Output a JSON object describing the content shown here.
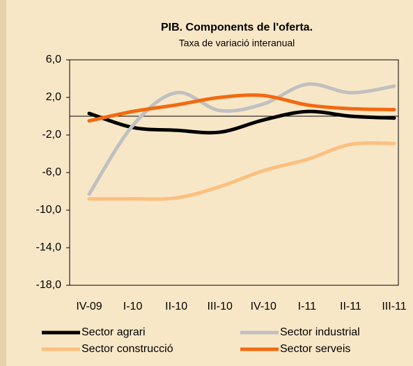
{
  "chart_data": {
    "type": "line",
    "title": "PIB. Components de l'oferta.",
    "subtitle": "Taxa de variació interanual",
    "categories": [
      "IV-09",
      "I-10",
      "II-10",
      "III-10",
      "IV-10",
      "I-11",
      "II-11",
      "III-11"
    ],
    "series": [
      {
        "name": "Sector agrari",
        "color": "#000000",
        "values": [
          0.3,
          -1.2,
          -1.5,
          -1.7,
          -0.4,
          0.5,
          0.0,
          -0.2
        ]
      },
      {
        "name": "Sector industrial",
        "color": "#c0c0c0",
        "values": [
          -8.3,
          -1.0,
          2.5,
          0.6,
          1.3,
          3.4,
          2.5,
          3.2
        ]
      },
      {
        "name": "Sector construcció",
        "color": "#fbbf7f",
        "values": [
          -8.8,
          -8.8,
          -8.7,
          -7.5,
          -5.8,
          -4.6,
          -3.0,
          -2.9
        ]
      },
      {
        "name": "Sector serveis",
        "color": "#f26a10",
        "values": [
          -0.5,
          0.5,
          1.2,
          2.0,
          2.2,
          1.2,
          0.8,
          0.7
        ]
      }
    ],
    "ylim": [
      -18,
      6
    ],
    "yticks": [
      {
        "value": -18,
        "label": "-18,0"
      },
      {
        "value": -14,
        "label": "-14,0"
      },
      {
        "value": -10,
        "label": "-10,0"
      },
      {
        "value": -6,
        "label": "-6,0"
      },
      {
        "value": -2,
        "label": "-2,0"
      },
      {
        "value": 2,
        "label": "2,0"
      },
      {
        "value": 6,
        "label": "6,0"
      }
    ],
    "grid": false
  }
}
